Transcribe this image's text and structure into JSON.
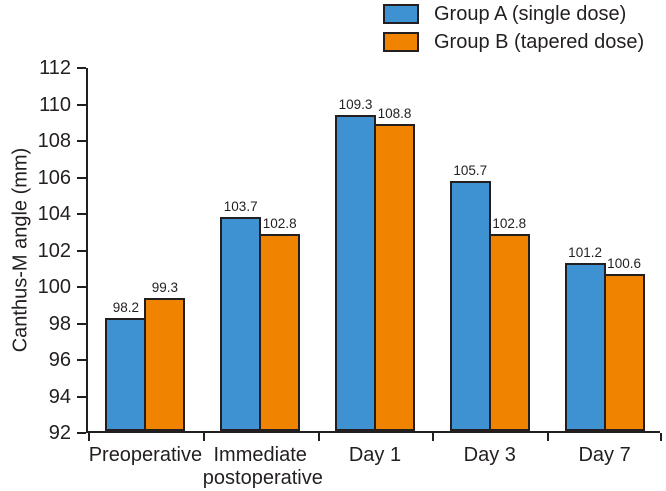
{
  "chart_data": {
    "type": "bar",
    "title": "",
    "xlabel": "",
    "ylabel": "Canthus-M angle (mm)",
    "ylim": [
      92,
      112
    ],
    "ytick_step": 2,
    "grid": false,
    "legend_position": "top-right",
    "value_label_decimals": 1,
    "axis_color": "#231f20",
    "bar_border_color": "#231f20",
    "categories": [
      "Preoperative",
      "Immediate\npostoperative",
      "Day 1",
      "Day 3",
      "Day 7"
    ],
    "series": [
      {
        "name": "Group A (single dose)",
        "color": "#3e92d1",
        "values": [
          98.2,
          103.7,
          109.3,
          105.7,
          101.2
        ]
      },
      {
        "name": "Group B (tapered dose)",
        "color": "#f08300",
        "values": [
          99.3,
          102.8,
          108.8,
          102.8,
          100.6
        ]
      }
    ]
  }
}
